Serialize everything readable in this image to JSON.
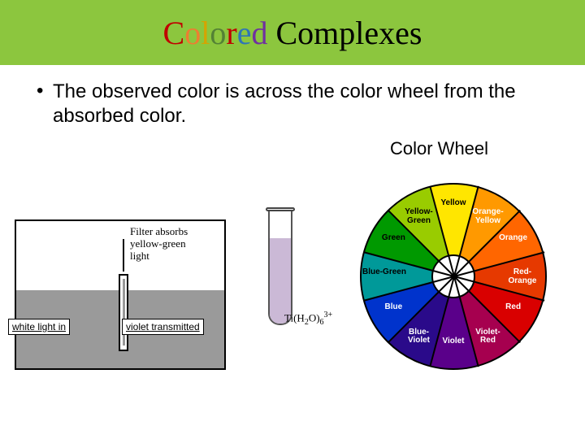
{
  "title_chars": [
    "C",
    "o",
    "l",
    "o",
    "r",
    "e",
    "d"
  ],
  "title_rest": " Complexes",
  "bullet_text": "The observed color is across the color wheel from the absorbed color.",
  "subheading": "Color Wheel",
  "filter": {
    "label_l1": "Filter absorbs",
    "label_l2": "yellow-green",
    "label_l3": "light",
    "caption_in": "white light in",
    "caption_out": "violet transmitted"
  },
  "tube_formula_html": "Ti(H<sub>2</sub>O)<sub>6</sub><sup>3+</sup>",
  "wheel": {
    "segments": [
      {
        "name": "Yellow",
        "color": "#ffe600",
        "text": "#000",
        "angle": 0
      },
      {
        "name": "Orange-\nYellow",
        "color": "#ff9900",
        "text": "#fff",
        "angle": 30
      },
      {
        "name": "Orange",
        "color": "#ff6600",
        "text": "#fff",
        "angle": 60
      },
      {
        "name": "Red-\nOrange",
        "color": "#e63900",
        "text": "#fff",
        "angle": 90
      },
      {
        "name": "Red",
        "color": "#d90000",
        "text": "#fff",
        "angle": 120
      },
      {
        "name": "Violet-\nRed",
        "color": "#a6004f",
        "text": "#fff",
        "angle": 150
      },
      {
        "name": "Violet",
        "color": "#5a008a",
        "text": "#fff",
        "angle": 180
      },
      {
        "name": "Blue-\nViolet",
        "color": "#2a0a8a",
        "text": "#fff",
        "angle": 210
      },
      {
        "name": "Blue",
        "color": "#0033cc",
        "text": "#fff",
        "angle": 240
      },
      {
        "name": "Blue-Green",
        "color": "#009999",
        "text": "#000",
        "angle": 270
      },
      {
        "name": "Green",
        "color": "#009900",
        "text": "#000",
        "angle": 300
      },
      {
        "name": "Yellow-\nGreen",
        "color": "#99cc00",
        "text": "#000",
        "angle": 330
      }
    ],
    "label_fontsize": 10
  }
}
